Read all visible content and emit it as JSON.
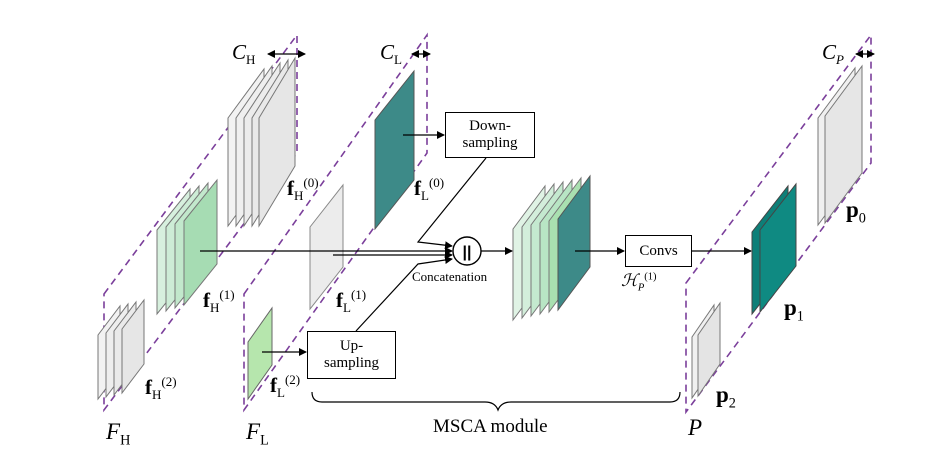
{
  "colors": {
    "dashed_border": "#7b3f9b",
    "green_light": "#c9ecd4",
    "green_mid": "#9fd9b0",
    "green_soft": "#b9e8b0",
    "teal": "#3d8a88",
    "teal_dark": "#0d7f78",
    "gray_fill": "#eaeaea"
  },
  "labels": {
    "C_H": {
      "main": "C",
      "sub": "H"
    },
    "C_L": {
      "main": "C",
      "sub": "L"
    },
    "C_P": {
      "main": "C",
      "sub": "P"
    },
    "f_H0": {
      "main": "f",
      "sub": "H",
      "sup": "(0)"
    },
    "f_H1": {
      "main": "f",
      "sub": "H",
      "sup": "(1)"
    },
    "f_H2": {
      "main": "f",
      "sub": "H",
      "sup": "(2)"
    },
    "f_L0": {
      "main": "f",
      "sub": "L",
      "sup": "(0)"
    },
    "f_L1": {
      "main": "f",
      "sub": "L",
      "sup": "(1)"
    },
    "f_L2": {
      "main": "f",
      "sub": "L",
      "sup": "(2)"
    },
    "F_H": {
      "main": "F",
      "sub": "H"
    },
    "F_L": {
      "main": "F",
      "sub": "L"
    },
    "P": "P",
    "p0": {
      "main": "p",
      "sub": "0"
    },
    "p1": {
      "main": "p",
      "sub": "1"
    },
    "p2": {
      "main": "p",
      "sub": "2"
    },
    "H_P1": {
      "main": "ℋ",
      "sub": "P",
      "sup": "(1)"
    },
    "concat_symbol": "||",
    "concatenation": "Concatenation",
    "msca_module": "MSCA module"
  },
  "boxes": {
    "downsampling": [
      "Down-",
      "sampling"
    ],
    "upsampling": [
      "Up-",
      "sampling"
    ],
    "convs": "Convs"
  }
}
